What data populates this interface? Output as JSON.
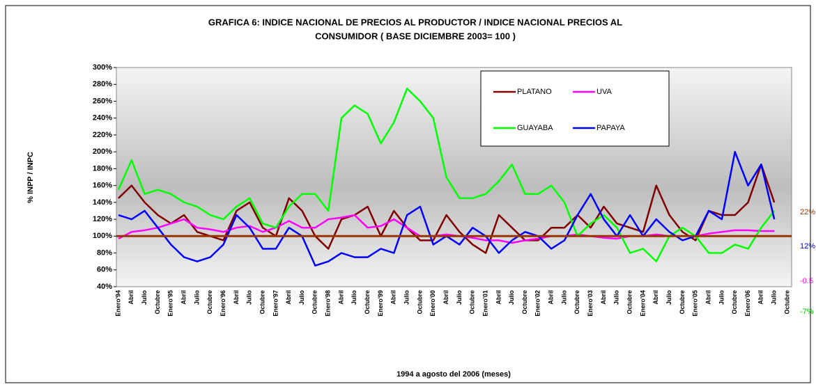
{
  "chart_data": {
    "type": "line",
    "title": [
      "GRAFICA 6: INDICE NACIONAL DE PRECIOS AL PRODUCTOR /  INDICE NACIONAL PRECIOS AL",
      "CONSUMIDOR ( BASE DICIEMBRE 2003= 100 )"
    ],
    "y_label": "% INPP / INPC",
    "x_label": "1994 a agosto del 2006 (meses)",
    "categories": [
      "Enero'94",
      "Abril",
      "Julio",
      "Octubre",
      "Enero'95",
      "Abril",
      "Julio",
      "Octubre",
      "Enero'96",
      "Abril",
      "Julio",
      "Octubre",
      "Enero'97",
      "Abril",
      "Julio",
      "Octubre",
      "Enero'98",
      "Abril",
      "Julio",
      "Octubre",
      "Enero'99",
      "Abril",
      "Julio",
      "Octubre",
      "Enero'00",
      "Abril",
      "Julio",
      "Octubre",
      "Enero'01",
      "Abril",
      "Julio",
      "Octubre",
      "Enero'02",
      "Abril",
      "Julio",
      "Octubre",
      "Enero'03",
      "Abril",
      "Julio",
      "Octubre",
      "Enero'04",
      "Abril",
      "Julio",
      "Octubre",
      "Enero'05",
      "Abril",
      "Julio",
      "Octubre",
      "Enero'06",
      "Abril",
      "Julio",
      "Octubre"
    ],
    "series": [
      {
        "name": "PLATANO",
        "color": "#800000",
        "values": [
          145,
          160,
          140,
          125,
          115,
          125,
          105,
          100,
          95,
          130,
          140,
          110,
          100,
          145,
          130,
          100,
          85,
          120,
          125,
          135,
          100,
          130,
          110,
          95,
          95,
          125,
          105,
          90,
          80,
          125,
          110,
          95,
          95,
          110,
          110,
          125,
          110,
          135,
          115,
          110,
          105,
          160,
          125,
          105,
          95,
          130,
          125,
          125,
          140,
          185,
          140,
          null
        ]
      },
      {
        "name": "UVA",
        "color": "#ff00ff",
        "values": [
          97,
          105,
          107,
          110,
          115,
          120,
          110,
          108,
          105,
          110,
          112,
          105,
          110,
          118,
          110,
          110,
          120,
          122,
          125,
          110,
          112,
          120,
          110,
          100,
          100,
          102,
          100,
          98,
          95,
          95,
          92,
          95,
          97,
          100,
          100,
          102,
          100,
          98,
          97,
          100,
          100,
          102,
          100,
          100,
          100,
          103,
          105,
          107,
          107,
          106,
          106,
          null
        ]
      },
      {
        "name": "GUAYABA",
        "color": "#00ff00",
        "values": [
          155,
          190,
          150,
          155,
          150,
          140,
          135,
          125,
          120,
          135,
          145,
          115,
          110,
          135,
          150,
          150,
          130,
          240,
          255,
          245,
          210,
          235,
          275,
          260,
          240,
          170,
          145,
          145,
          150,
          165,
          185,
          150,
          150,
          160,
          140,
          100,
          115,
          125,
          110,
          80,
          85,
          70,
          100,
          110,
          100,
          80,
          80,
          90,
          85,
          110,
          130,
          null
        ]
      },
      {
        "name": "PAPAYA",
        "color": "#0000ff",
        "values": [
          125,
          120,
          130,
          110,
          90,
          75,
          70,
          75,
          90,
          125,
          110,
          85,
          85,
          110,
          100,
          65,
          70,
          80,
          75,
          75,
          85,
          80,
          125,
          135,
          90,
          100,
          90,
          110,
          100,
          80,
          95,
          105,
          100,
          85,
          95,
          125,
          150,
          120,
          100,
          125,
          100,
          120,
          105,
          95,
          100,
          130,
          120,
          200,
          160,
          185,
          120,
          null
        ]
      }
    ],
    "reference_line": {
      "value": 100,
      "color": "#993300"
    },
    "ylim": [
      40,
      300
    ],
    "yticks": [
      {
        "value": 40,
        "label": "40%"
      },
      {
        "value": 60,
        "label": "60%"
      },
      {
        "value": 80,
        "label": "80%"
      },
      {
        "value": 100,
        "label": "100%"
      },
      {
        "value": 120,
        "label": "120%"
      },
      {
        "value": 140,
        "label": "140%"
      },
      {
        "value": 160,
        "label": "160%"
      },
      {
        "value": 180,
        "label": "180%"
      },
      {
        "value": 200,
        "label": "200%"
      },
      {
        "value": 220,
        "label": "220%"
      },
      {
        "value": 240,
        "label": "240%"
      },
      {
        "value": 260,
        "label": "260%"
      },
      {
        "value": 280,
        "label": "280%"
      },
      {
        "value": 300,
        "label": "300%"
      }
    ],
    "annotations": [
      {
        "text": "22%",
        "color": "#993300"
      },
      {
        "text": "12%",
        "color": "#0000ff"
      },
      {
        "text": "-0.5",
        "color": "#ff00ff"
      },
      {
        "text": "-7%",
        "color": "#00cc00"
      }
    ]
  }
}
